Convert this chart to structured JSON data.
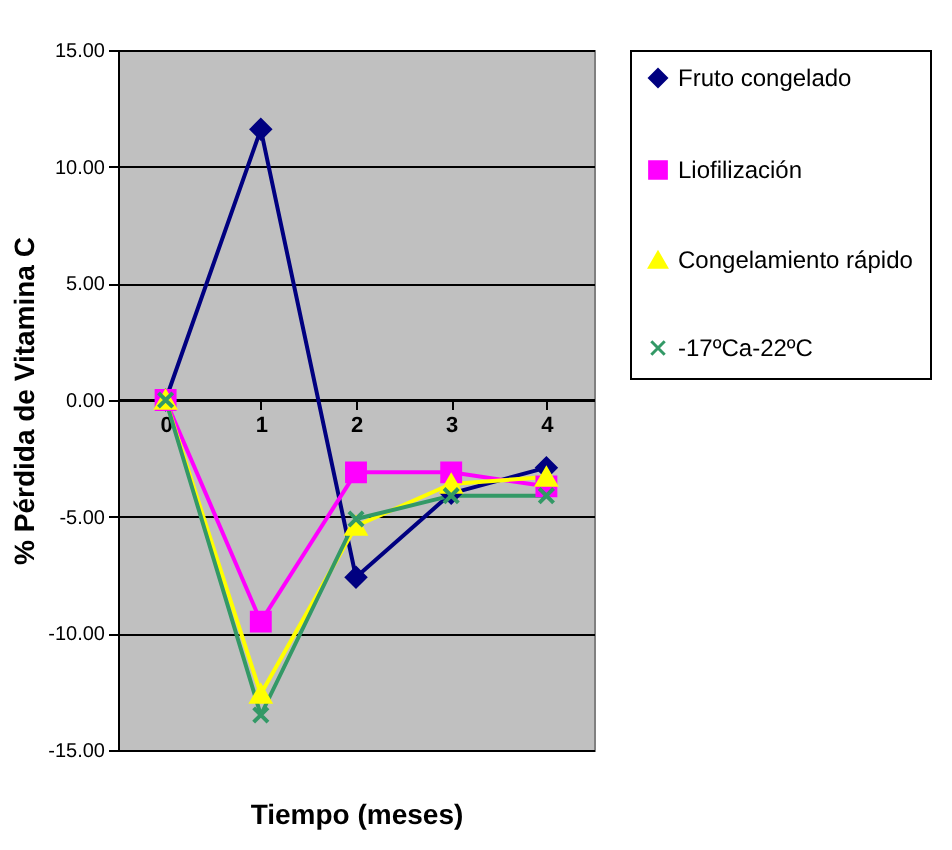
{
  "chart_data": {
    "type": "line",
    "xlabel": "Tiempo (meses)",
    "ylabel": "% Pérdida de Vitamina C",
    "categories": [
      "0",
      "1",
      "2",
      "3",
      "4"
    ],
    "series": [
      {
        "name": "Fruto congelado",
        "color": "#000080",
        "marker": "diamond",
        "values": [
          0,
          11.6,
          -7.6,
          -4.0,
          -2.9
        ]
      },
      {
        "name": "Liofilización",
        "color": "#ff00ff",
        "marker": "square",
        "values": [
          0,
          -9.5,
          -3.1,
          -3.1,
          -3.7
        ]
      },
      {
        "name": "Congelamiento rápido",
        "color": "#ffff00",
        "marker": "triangle",
        "values": [
          0,
          -12.6,
          -5.4,
          -3.6,
          -3.3
        ]
      },
      {
        "name": "-17ºCa-22ºC",
        "color": "#339966",
        "marker": "cross",
        "values": [
          0,
          -13.5,
          -5.1,
          -4.1,
          -4.1
        ]
      }
    ],
    "ylim": [
      -15,
      15
    ],
    "yticks": [
      {
        "value": -15,
        "label": "-15.00"
      },
      {
        "value": -10,
        "label": "-10.00"
      },
      {
        "value": -5,
        "label": "-5.00"
      },
      {
        "value": 0,
        "label": "0.00"
      },
      {
        "value": 5,
        "label": "5.00"
      },
      {
        "value": 10,
        "label": "10.00"
      },
      {
        "value": 15,
        "label": "15.00"
      }
    ],
    "grid": "y",
    "legend": "right"
  }
}
